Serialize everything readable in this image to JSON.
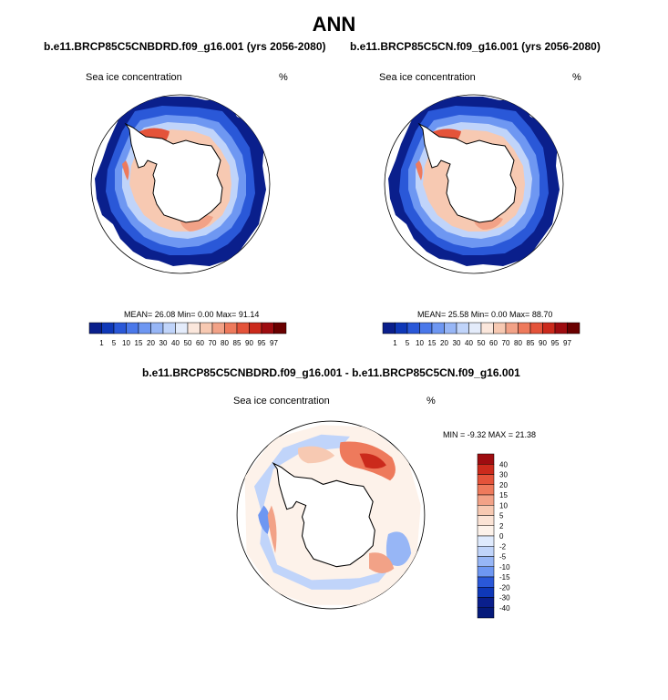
{
  "page": {
    "title": "ANN"
  },
  "panels": [
    {
      "case_title": "b.e11.BRCP85C5CNBDRD.f09_g16.001 (yrs 2056-2080)",
      "variable": "Sea ice concentration",
      "units": "%",
      "stats_text": "MEAN=  26.08  Min=   0.00  Max=  91.14",
      "mean": 26.08,
      "min": 0.0,
      "max": 91.14
    },
    {
      "case_title": "b.e11.BRCP85C5CN.f09_g16.001 (yrs 2056-2080)",
      "variable": "Sea ice concentration",
      "units": "%",
      "stats_text": "MEAN=  25.58  Min=   0.00  Max=  88.70",
      "mean": 25.58,
      "min": 0.0,
      "max": 88.7
    }
  ],
  "diff_panel": {
    "title": "b.e11.BRCP85C5CNBDRD.f09_g16.001 - b.e11.BRCP85C5CN.f09_g16.001",
    "variable": "Sea ice concentration",
    "units": "%",
    "stats_text": "MIN =  -9.32 MAX =  21.38",
    "min": -9.32,
    "max": 21.38
  },
  "chart_data": [
    {
      "type": "heatmap",
      "projection": "south-polar-stereographic",
      "title": "b.e11.BRCP85C5CNBDRD.f09_g16.001 (yrs 2056-2080)",
      "colorbar_labels": [
        "1",
        "5",
        "10",
        "15",
        "20",
        "30",
        "40",
        "50",
        "60",
        "70",
        "80",
        "85",
        "90",
        "95",
        "97"
      ],
      "colorbar_colors": [
        "#0a1f8c",
        "#0f38b8",
        "#2a58d8",
        "#4a78ea",
        "#6e97f2",
        "#97b6f6",
        "#c0d4fa",
        "#e4ecfb",
        "#fbe7dc",
        "#f7c9b2",
        "#f2a287",
        "#ee7a5c",
        "#e4533a",
        "#cb2a1c",
        "#9e0c10",
        "#6a0000"
      ]
    },
    {
      "type": "heatmap",
      "projection": "south-polar-stereographic",
      "title": "b.e11.BRCP85C5CN.f09_g16.001 (yrs 2056-2080)",
      "colorbar_labels": [
        "1",
        "5",
        "10",
        "15",
        "20",
        "30",
        "40",
        "50",
        "60",
        "70",
        "80",
        "85",
        "90",
        "95",
        "97"
      ],
      "colorbar_colors": [
        "#0a1f8c",
        "#0f38b8",
        "#2a58d8",
        "#4a78ea",
        "#6e97f2",
        "#97b6f6",
        "#c0d4fa",
        "#e4ecfb",
        "#fbe7dc",
        "#f7c9b2",
        "#f2a287",
        "#ee7a5c",
        "#e4533a",
        "#cb2a1c",
        "#9e0c10",
        "#6a0000"
      ]
    },
    {
      "type": "heatmap",
      "projection": "south-polar-stereographic",
      "title": "b.e11.BRCP85C5CNBDRD.f09_g16.001 - b.e11.BRCP85C5CN.f09_g16.001",
      "colorbar_labels": [
        "40",
        "30",
        "20",
        "15",
        "10",
        "5",
        "2",
        "0",
        "-2",
        "-5",
        "-10",
        "-15",
        "-20",
        "-30",
        "-40"
      ],
      "colorbar_colors": [
        "#9e0c10",
        "#cb2a1c",
        "#e4533a",
        "#ee7a5c",
        "#f2a287",
        "#f7c9b2",
        "#fbe3d5",
        "#fdf2ea",
        "#dfeafd",
        "#c0d4fa",
        "#97b6f6",
        "#6e97f2",
        "#2a58d8",
        "#0f38b8",
        "#0a1f8c",
        "#051a7a"
      ]
    }
  ]
}
